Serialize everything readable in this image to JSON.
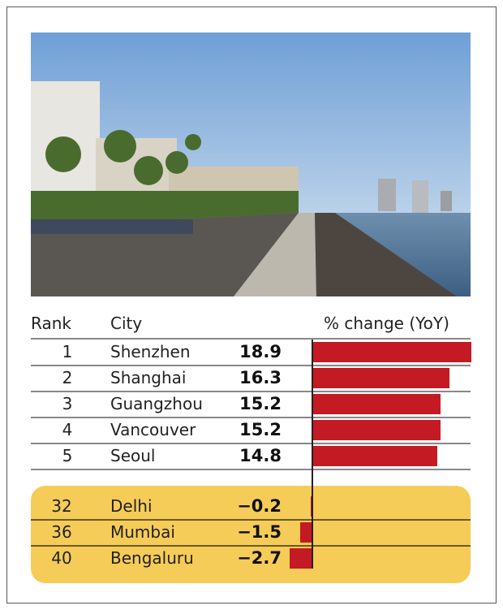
{
  "chart_data": {
    "type": "bar",
    "orientation": "horizontal",
    "headers": {
      "rank": "Rank",
      "city": "City",
      "change": "% change (YoY)"
    },
    "top": [
      {
        "rank": "1",
        "city": "Shenzhen",
        "value": 18.9,
        "label": "18.9"
      },
      {
        "rank": "2",
        "city": "Shanghai",
        "value": 16.3,
        "label": "16.3"
      },
      {
        "rank": "3",
        "city": "Guangzhou",
        "value": 15.2,
        "label": "15.2"
      },
      {
        "rank": "4",
        "city": "Vancouver",
        "value": 15.2,
        "label": "15.2"
      },
      {
        "rank": "5",
        "city": "Seoul",
        "value": 14.8,
        "label": "14.8"
      }
    ],
    "india": [
      {
        "rank": "32",
        "city": "Delhi",
        "value": -0.2,
        "label": "−0.2"
      },
      {
        "rank": "36",
        "city": "Mumbai",
        "value": -1.5,
        "label": "−1.5"
      },
      {
        "rank": "40",
        "city": "Bengaluru",
        "value": -2.7,
        "label": "−2.7"
      }
    ],
    "bar_color": "#c41a23",
    "highlight_color": "#f6cc58"
  }
}
